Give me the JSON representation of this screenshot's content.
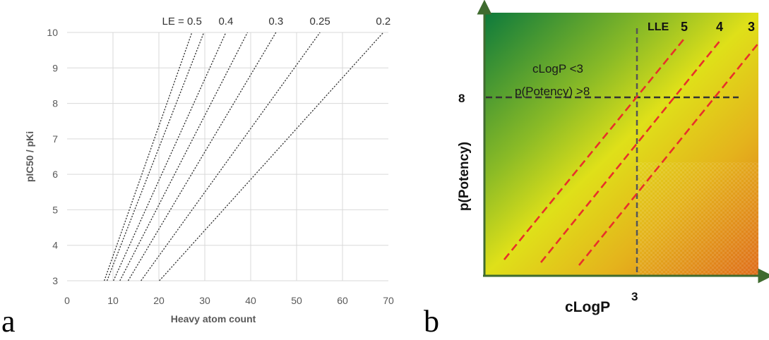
{
  "panels": {
    "a": {
      "letter": "a"
    },
    "b": {
      "letter": "b"
    }
  },
  "chart_data": [
    {
      "type": "line",
      "panel": "a",
      "xlabel": "Heavy atom count",
      "ylabel": "pIC50 / pKi",
      "xlim": [
        0,
        70
      ],
      "ylim": [
        3,
        10
      ],
      "xticks": [
        0,
        10,
        20,
        30,
        40,
        50,
        60,
        70
      ],
      "yticks": [
        3,
        4,
        5,
        6,
        7,
        8,
        9,
        10
      ],
      "grid": true,
      "line_style": "dotted",
      "series_label_prefix": "LE = ",
      "series": [
        {
          "label": "0.5",
          "points": [
            [
              8.1,
              3
            ],
            [
              27.2,
              10
            ]
          ]
        },
        {
          "label": "",
          "points": [
            [
              8.7,
              3
            ],
            [
              29.8,
              10
            ]
          ]
        },
        {
          "label": "0.4",
          "points": [
            [
              10.1,
              3
            ],
            [
              34.6,
              10
            ]
          ]
        },
        {
          "label": "",
          "points": [
            [
              11.5,
              3
            ],
            [
              39.3,
              10
            ]
          ]
        },
        {
          "label": "0.3",
          "points": [
            [
              13.3,
              3
            ],
            [
              45.5,
              10
            ]
          ]
        },
        {
          "label": "0.25",
          "points": [
            [
              16.1,
              3
            ],
            [
              55.1,
              10
            ]
          ]
        },
        {
          "label": "0.2",
          "points": [
            [
              20.1,
              3
            ],
            [
              68.9,
              10
            ]
          ]
        }
      ]
    },
    {
      "type": "line",
      "panel": "b",
      "xlabel": "cLogP",
      "ylabel": "p(Potency)",
      "xticks_text": [
        "3"
      ],
      "yticks_text": [
        "8"
      ],
      "background": "gradient green (top-left) to yellow to orange (bottom-right)",
      "annotation_lines": [
        "cLogP  <3",
        "p(Potency) >8"
      ],
      "series_title": "LLE",
      "series": [
        {
          "label": "5",
          "color": "#e8302a"
        },
        {
          "label": "4",
          "color": "#e8302a"
        },
        {
          "label": "3",
          "color": "#e8302a"
        }
      ],
      "reference_lines": [
        {
          "orientation": "vertical",
          "at": "3",
          "style": "dashed",
          "color": "#555555"
        },
        {
          "orientation": "horizontal",
          "at": "8",
          "style": "dashed",
          "color": "#333333"
        }
      ],
      "colors": {
        "gradient_start": "#0f7a3a",
        "gradient_mid": "#dede14",
        "gradient_end": "#e2701a",
        "axis": "#3f6b2f"
      }
    }
  ]
}
